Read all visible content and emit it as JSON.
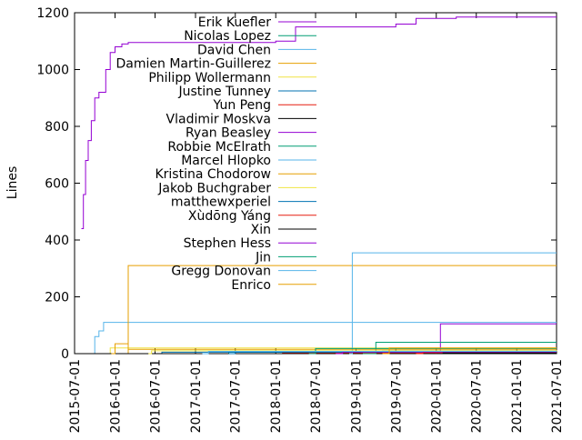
{
  "chart_data": {
    "type": "line",
    "ylabel": "Lines",
    "xlabel": "",
    "title": "",
    "ylim": [
      0,
      1200
    ],
    "xlim": [
      "2015-07-01",
      "2021-07-01"
    ],
    "y_ticks": [
      "0",
      "200",
      "400",
      "600",
      "800",
      "1000",
      "1200"
    ],
    "x_ticks": [
      "2015-07-01",
      "2016-01-01",
      "2016-07-01",
      "2017-01-01",
      "2017-07-01",
      "2018-01-01",
      "2018-07-01",
      "2019-01-01",
      "2019-07-01",
      "2020-01-01",
      "2020-07-01",
      "2021-01-01",
      "2021-07-01"
    ],
    "legend_position": "top-right",
    "series": [
      {
        "name": "Erik Kuefler",
        "color": "#9400d3",
        "points": [
          [
            "2015-08-01",
            440
          ],
          [
            "2015-08-10",
            560
          ],
          [
            "2015-08-20",
            680
          ],
          [
            "2015-09-01",
            750
          ],
          [
            "2015-09-15",
            820
          ],
          [
            "2015-10-01",
            900
          ],
          [
            "2015-10-20",
            920
          ],
          [
            "2015-11-20",
            1000
          ],
          [
            "2015-12-10",
            1060
          ],
          [
            "2016-01-01",
            1080
          ],
          [
            "2016-02-01",
            1090
          ],
          [
            "2016-03-01",
            1095
          ],
          [
            "2018-01-01",
            1100
          ],
          [
            "2018-04-01",
            1150
          ],
          [
            "2019-01-01",
            1150
          ],
          [
            "2019-07-01",
            1160
          ],
          [
            "2019-10-01",
            1180
          ],
          [
            "2020-04-01",
            1185
          ],
          [
            "2021-07-01",
            1185
          ]
        ]
      },
      {
        "name": "Nicolas Lopez",
        "color": "#009e73",
        "points": [
          [
            "2017-01-01",
            0
          ],
          [
            "2017-06-01",
            5
          ],
          [
            "2018-06-01",
            8
          ],
          [
            "2019-05-01",
            10
          ],
          [
            "2021-07-01",
            10
          ]
        ]
      },
      {
        "name": "David Chen",
        "color": "#56b4e9",
        "points": [
          [
            "2015-09-20",
            0
          ],
          [
            "2015-10-01",
            60
          ],
          [
            "2015-10-20",
            80
          ],
          [
            "2015-11-10",
            110
          ],
          [
            "2021-07-01",
            110
          ]
        ]
      },
      {
        "name": "Damien Martin-Guillerez",
        "color": "#e69f00",
        "points": [
          [
            "2016-02-20",
            0
          ],
          [
            "2016-03-01",
            310
          ],
          [
            "2021-07-01",
            310
          ]
        ]
      },
      {
        "name": "Philipp Wollermann",
        "color": "#f0e442",
        "points": [
          [
            "2015-12-01",
            0
          ],
          [
            "2015-12-10",
            20
          ],
          [
            "2021-07-01",
            20
          ]
        ]
      },
      {
        "name": "Justine Tunney",
        "color": "#0072b2",
        "points": [
          [
            "2016-07-01",
            0
          ],
          [
            "2016-08-01",
            5
          ],
          [
            "2021-07-01",
            5
          ]
        ]
      },
      {
        "name": "Yun Peng",
        "color": "#e51e10",
        "points": [
          [
            "2018-01-01",
            0
          ],
          [
            "2018-02-01",
            3
          ],
          [
            "2021-07-01",
            3
          ]
        ]
      },
      {
        "name": "Vladimir Moskva",
        "color": "#000000",
        "points": [
          [
            "2015-07-01",
            0
          ],
          [
            "2021-07-01",
            2
          ]
        ]
      },
      {
        "name": "Ryan Beasley",
        "color": "#9400d3",
        "points": [
          [
            "2020-01-01",
            0
          ],
          [
            "2020-01-20",
            105
          ],
          [
            "2021-07-01",
            105
          ]
        ]
      },
      {
        "name": "Robbie McElrath",
        "color": "#009e73",
        "points": [
          [
            "2019-02-01",
            0
          ],
          [
            "2019-04-01",
            40
          ],
          [
            "2021-07-01",
            40
          ]
        ]
      },
      {
        "name": "Marcel Hlopko",
        "color": "#56b4e9",
        "points": [
          [
            "2018-12-01",
            0
          ],
          [
            "2018-12-15",
            355
          ],
          [
            "2021-07-01",
            355
          ]
        ]
      },
      {
        "name": "Kristina Chodorow",
        "color": "#e69f00",
        "points": [
          [
            "2015-12-15",
            0
          ],
          [
            "2016-01-01",
            35
          ],
          [
            "2016-02-15",
            35
          ],
          [
            "2016-03-01",
            15
          ],
          [
            "2021-07-01",
            15
          ]
        ]
      },
      {
        "name": "Jakob Buchgraber",
        "color": "#f0e442",
        "points": [
          [
            "2016-06-01",
            0
          ],
          [
            "2016-06-15",
            10
          ],
          [
            "2021-07-01",
            12
          ]
        ]
      },
      {
        "name": "matthewxperiel",
        "color": "#0072b2",
        "points": [
          [
            "2017-06-01",
            0
          ],
          [
            "2017-07-01",
            5
          ],
          [
            "2021-07-01",
            5
          ]
        ]
      },
      {
        "name": "Xùdōng Yáng",
        "color": "#e51e10",
        "points": [
          [
            "2019-10-01",
            0
          ],
          [
            "2019-11-01",
            4
          ],
          [
            "2021-07-01",
            4
          ]
        ]
      },
      {
        "name": "Xin",
        "color": "#000000",
        "points": [
          [
            "2020-01-01",
            0
          ],
          [
            "2020-02-01",
            3
          ],
          [
            "2021-07-01",
            3
          ]
        ]
      },
      {
        "name": "Stephen Hess",
        "color": "#9400d3",
        "points": [
          [
            "2018-10-01",
            0
          ],
          [
            "2018-11-01",
            6
          ],
          [
            "2021-07-01",
            6
          ]
        ]
      },
      {
        "name": "Jin",
        "color": "#009e73",
        "points": [
          [
            "2018-06-01",
            0
          ],
          [
            "2018-07-01",
            18
          ],
          [
            "2021-07-01",
            18
          ]
        ]
      },
      {
        "name": "Gregg Donovan",
        "color": "#56b4e9",
        "points": [
          [
            "2017-02-01",
            0
          ],
          [
            "2017-03-01",
            8
          ],
          [
            "2021-07-01",
            8
          ]
        ]
      },
      {
        "name": "Enrico",
        "color": "#e69f00",
        "points": [
          [
            "2019-05-01",
            0
          ],
          [
            "2019-06-01",
            20
          ],
          [
            "2021-07-01",
            20
          ]
        ]
      }
    ]
  }
}
